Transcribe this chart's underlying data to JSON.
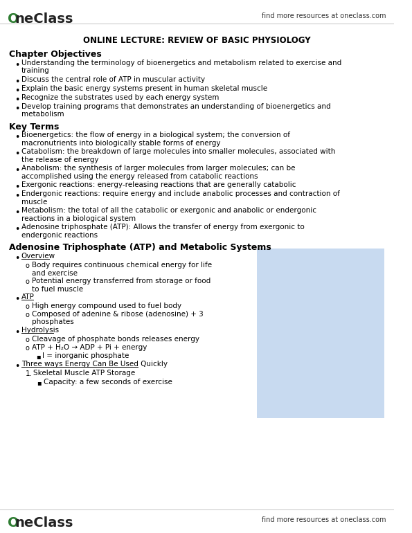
{
  "bg_color": "#ffffff",
  "header_logo_color": "#2e7d32",
  "header_right_text": "find more resources at oneclass.com",
  "footer_logo_color": "#2e7d32",
  "footer_right_text": "find more resources at oneclass.com",
  "page_title": "ONLINE LECTURE: REVIEW OF BASIC PHYSIOLOGY",
  "section1_heading": "Chapter Objectives",
  "section1_bullets": [
    "Understanding the terminology of bioenergetics and metabolism related to exercise and\ntraining",
    "Discuss the central role of ATP in muscular activity",
    "Explain the basic energy systems present in human skeletal muscle",
    "Recognize the substrates used by each energy system",
    "Develop training programs that demonstrates an understanding of bioenergetics and\nmetabolism"
  ],
  "section2_heading": "Key Terms",
  "section2_bullets": [
    "Bioenergetics: the flow of energy in a biological system; the conversion of\nmacronutrients into biologically stable forms of energy",
    "Catabolism: the breakdown of large molecules into smaller molecules, associated with\nthe release of energy",
    "Anabolism: the synthesis of larger molecules from larger molecules; can be\naccomplished using the energy released from catabolic reactions",
    "Exergonic reactions: energy-releasing reactions that are generally catabolic",
    "Endergonic reactions: require energy and include anabolic processes and contraction of\nmuscle",
    "Metabolism: the total of all the catabolic or exergonic and anabolic or endergonic\nreactions in a biological system",
    "Adenosine triphosphate (ATP): Allows the transfer of energy from exergonic to\nendergonic reactions"
  ],
  "section3_heading": "Adenosine Triphosphate (ATP) and Metabolic Systems",
  "section3_bullet1": "Overview",
  "section3_sub1": [
    "Body requires continuous chemical energy for life\nand exercise",
    "Potential energy transferred from storage or food\nto fuel muscle"
  ],
  "section3_bullet2": "ATP",
  "section3_sub2": [
    "High energy compound used to fuel body",
    "Composed of adenine & ribose (adenosine) + 3\nphosphates"
  ],
  "section3_bullet3": "Hydrolysis",
  "section3_sub3": [
    "Cleavage of phosphate bonds releases energy",
    "ATP + H₂O → ADP + Pi + energy",
    "I = inorganic phosphate"
  ],
  "section3_bullet4": "Three ways Energy Can Be Used Quickly",
  "section3_numbered0": "Skeletal Muscle ATP Storage",
  "section3_capacity": "Capacity: a few seconds of exercise",
  "diagram_box_color": "#c8daf0",
  "text_color": "#000000"
}
